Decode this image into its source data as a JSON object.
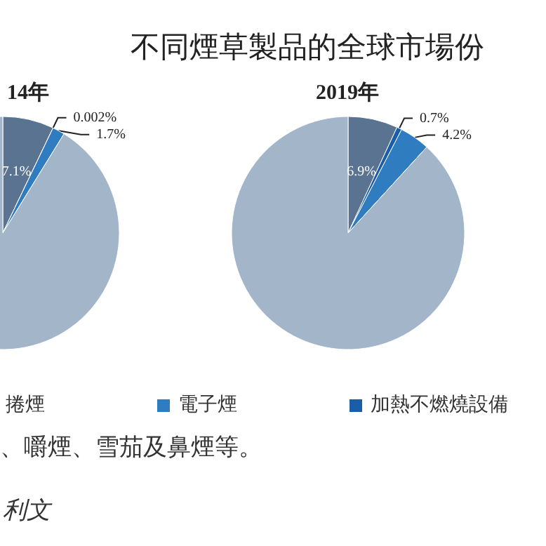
{
  "chart_data": {
    "type": "pie",
    "title": "不同煙草製品的全球市場份",
    "categories": [
      null,
      "加熱不燃燒設備",
      "電子煙",
      "捲煙"
    ],
    "colors": [
      "#5a7390",
      "#1a5ea8",
      "#2f7cc0",
      "#a3b5c8"
    ],
    "series": [
      {
        "name": "14年",
        "values": [
          7.1,
          0.002,
          1.7,
          91.198
        ],
        "value_labels": [
          "7.1%",
          "0.002%",
          "1.7%",
          null
        ]
      },
      {
        "name": "2019年",
        "values": [
          6.9,
          0.7,
          4.2,
          88.2
        ],
        "value_labels": [
          "6.9%",
          "0.7%",
          "4.2%",
          null
        ]
      }
    ],
    "legend": "bottom",
    "annotations": [
      "、嚼煙、雪茄及鼻煙等。",
      "利文"
    ]
  }
}
